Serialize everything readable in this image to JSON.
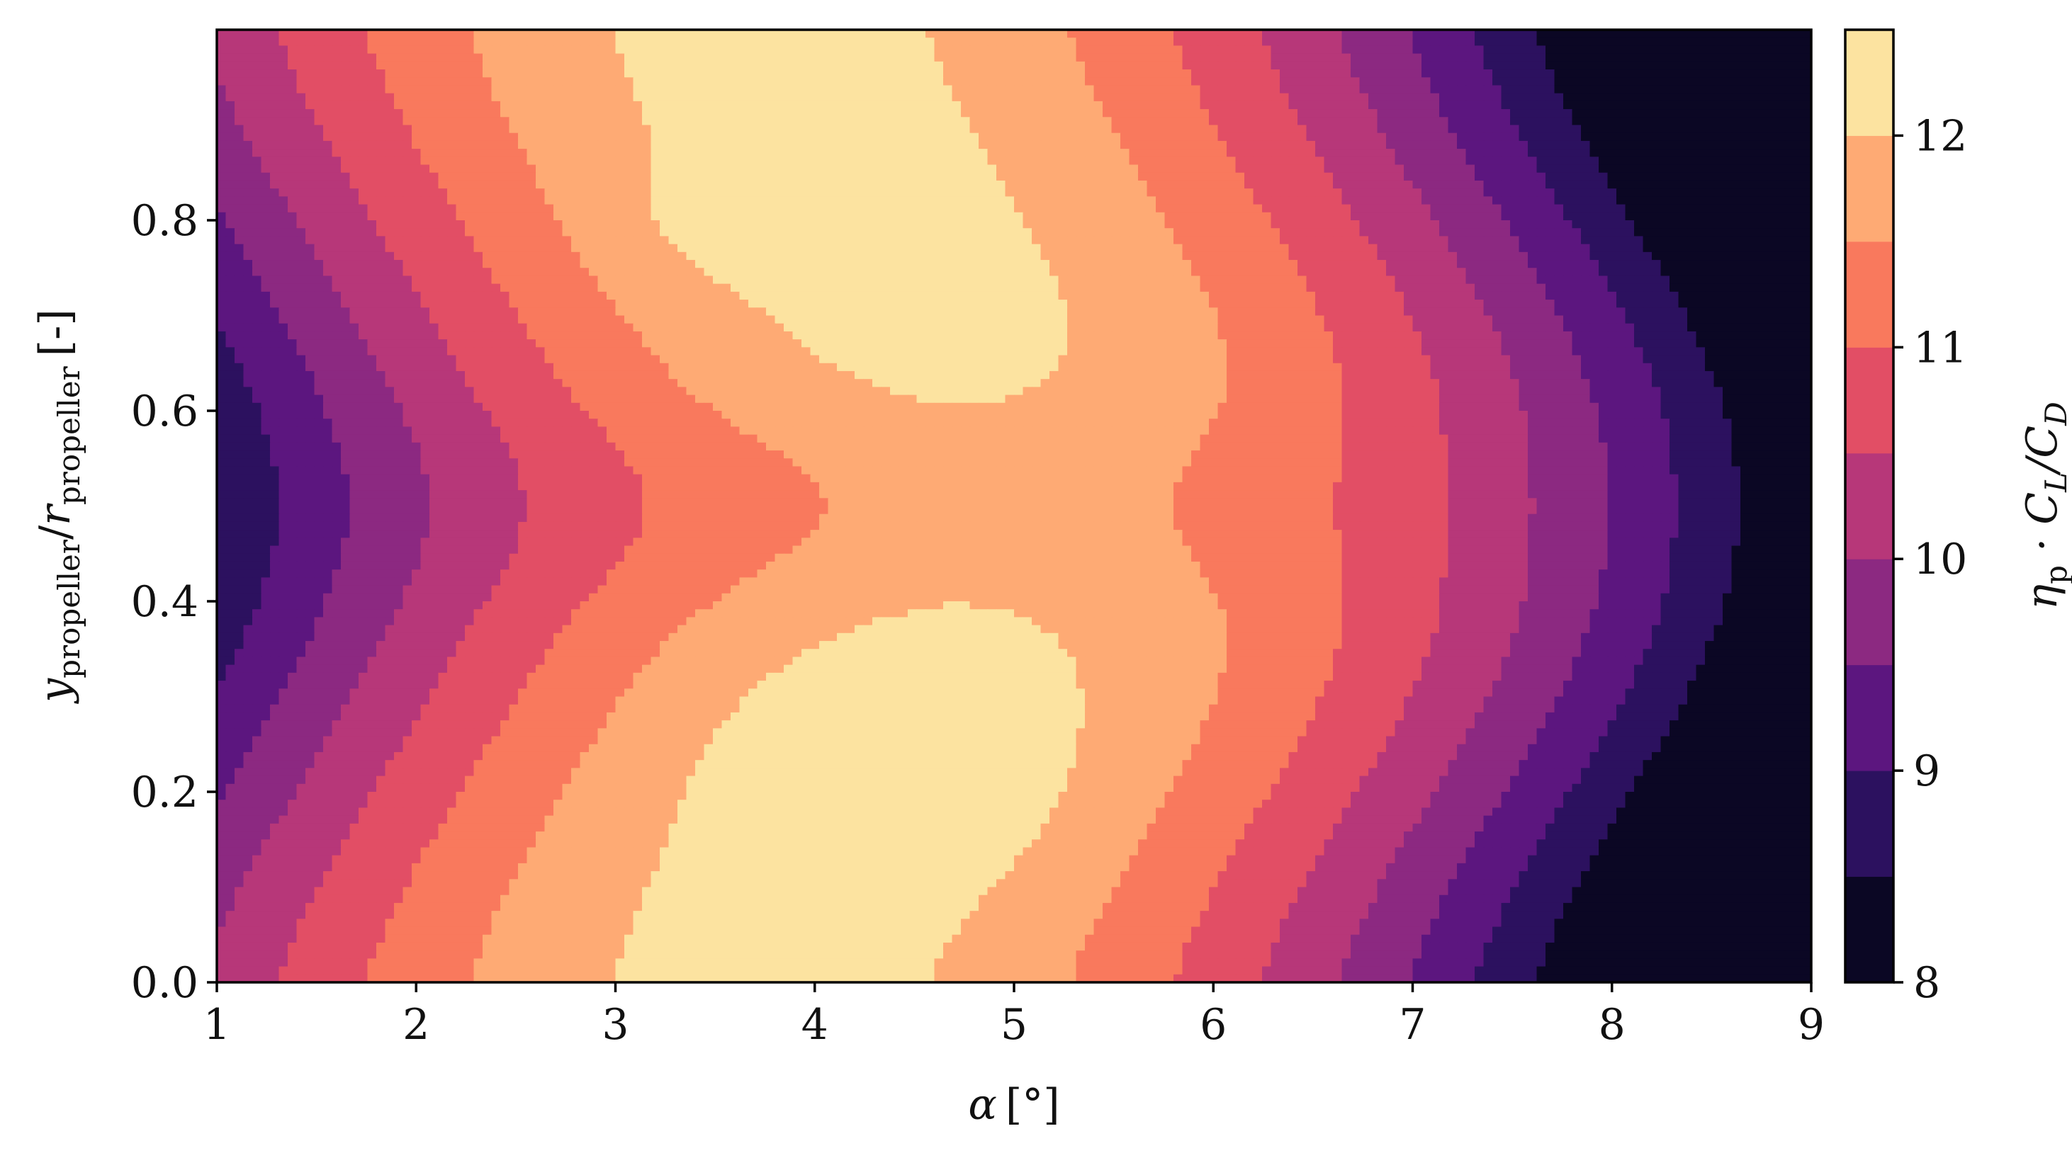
{
  "chart_data": {
    "type": "filled-contour",
    "x": {
      "label_symbol": "α",
      "label_unit": "[°]",
      "lim": [
        1,
        9
      ],
      "ticks": [
        1,
        2,
        3,
        4,
        5,
        6,
        7,
        8,
        9
      ]
    },
    "y": {
      "label_base": "y",
      "label_base_sub": "propeller",
      "label_div": "/",
      "label_r": "r",
      "label_r_sub": "propeller",
      "label_unit": "[-]",
      "lim": [
        0,
        1
      ],
      "ticks": [
        "0.0",
        "0.2",
        "0.4",
        "0.6",
        "0.8"
      ],
      "tick_values": [
        0,
        0.2,
        0.4,
        0.6,
        0.8
      ]
    },
    "colorbar": {
      "label_eta": "η",
      "label_eta_sub": "p",
      "label_rest": " · C",
      "label_L": "L",
      "label_slash": "/C",
      "label_D": "D",
      "levels": [
        8.0,
        8.5,
        9.0,
        9.5,
        10.0,
        10.5,
        11.0,
        11.5,
        12.0,
        12.5
      ],
      "ticks": [
        "8",
        "9",
        "10",
        "11",
        "12"
      ],
      "tick_values": [
        8,
        9,
        10,
        11,
        12
      ],
      "colormap": "magma",
      "colors": [
        "#0b0724",
        "#2c115f",
        "#5c167f",
        "#8c2981",
        "#b73779",
        "#e24e65",
        "#f9795d",
        "#feaa74",
        "#fce3a0"
      ]
    },
    "field_model": {
      "description_units": "eta_p*CL/CD over alpha [deg] and y/r",
      "peaks": [
        {
          "alpha": 3.6,
          "y": 0.8,
          "value": 12.3
        },
        {
          "alpha": 4.4,
          "y": 0.21,
          "value": 12.45
        }
      ],
      "range": [
        8.1,
        12.45
      ]
    }
  }
}
